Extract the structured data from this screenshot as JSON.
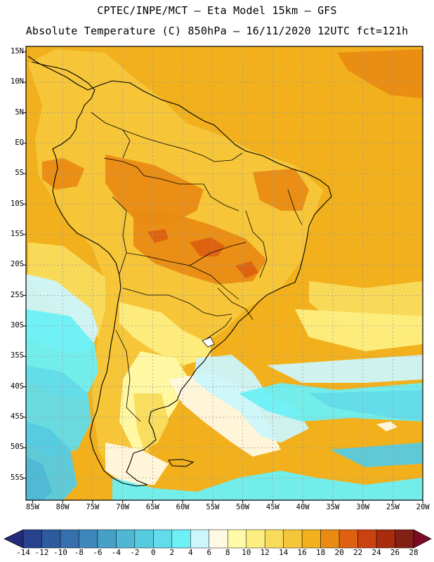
{
  "header": {
    "line1": "CPTEC/INPE/MCT –  Eta Model 15km – GFS",
    "line2": "Absolute Temperature (C) 850hPa – 16/11/2020 12UTC fct=121h"
  },
  "map": {
    "latitude_labels": [
      "15N",
      "10N",
      "5N",
      "EQ",
      "5S",
      "10S",
      "15S",
      "20S",
      "25S",
      "30S",
      "35S",
      "40S",
      "45S",
      "50S",
      "55S"
    ],
    "longitude_labels": [
      "85W",
      "80W",
      "75W",
      "70W",
      "65W",
      "60W",
      "55W",
      "50W",
      "45W",
      "40W",
      "35W",
      "30W",
      "25W",
      "20W"
    ]
  },
  "colorbar": {
    "ticks": [
      "-14",
      "-12",
      "-10",
      "-8",
      "-6",
      "-4",
      "-2",
      "0",
      "2",
      "4",
      "6",
      "8",
      "10",
      "12",
      "14",
      "16",
      "18",
      "20",
      "22",
      "24",
      "26",
      "28"
    ],
    "colors": [
      "#27418f",
      "#2e5a9f",
      "#3570ad",
      "#3d87bb",
      "#46a0c6",
      "#4fb7d3",
      "#56cbe0",
      "#62dcea",
      "#6cf0f5",
      "#ccf6fb",
      "#fff9e3",
      "#fffaa8",
      "#fdee7f",
      "#f9db5c",
      "#f5c63a",
      "#f1b01c",
      "#e98b13",
      "#dd6110",
      "#c9420f",
      "#a92c0f",
      "#832016"
    ],
    "low_arrow_color": "#232c78",
    "high_arrow_color": "#7c0c26"
  }
}
